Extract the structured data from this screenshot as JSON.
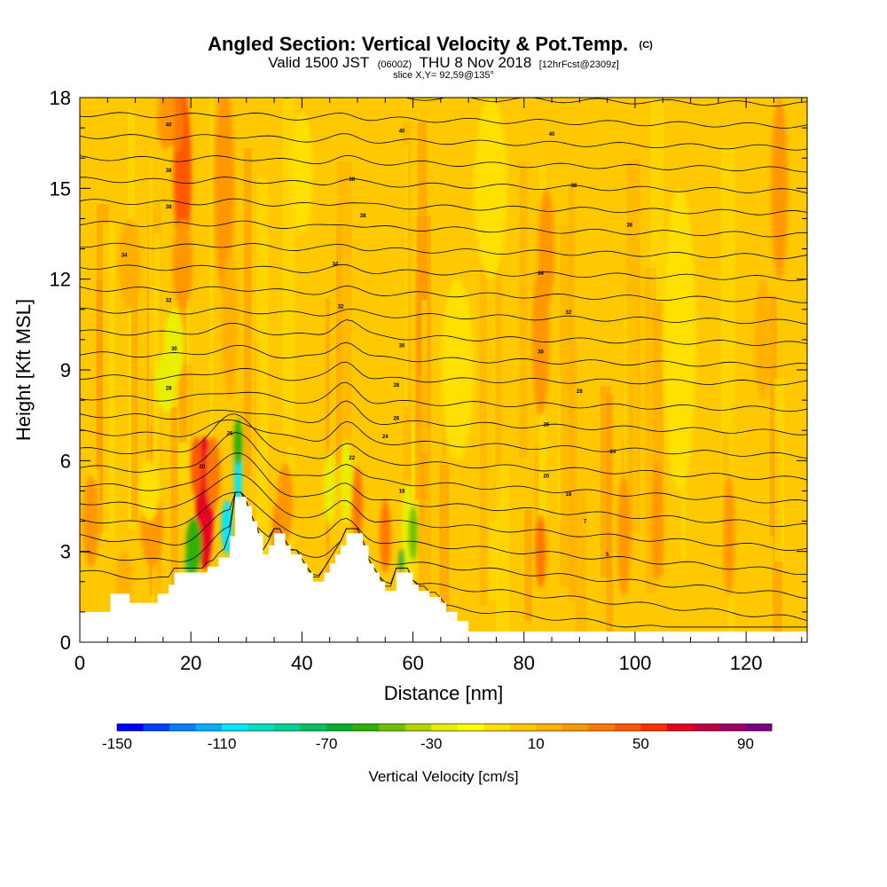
{
  "chart_data": {
    "type": "heatmap",
    "title": "Angled Section: Vertical Velocity & Pot.Temp.",
    "title_mark": "(C)",
    "subtitle": {
      "valid": "Valid 1500 JST",
      "z": "(0600Z)",
      "date": "THU 8 Nov 2018",
      "fcst": "[12hrFcst@2309z]"
    },
    "slice": "slice X,Y= 92,59@135°",
    "xlabel": "Distance [nm]",
    "ylabel": "Height [Kft MSL]",
    "xlim": [
      0,
      131
    ],
    "ylim": [
      0,
      18
    ],
    "xticks": [
      0,
      20,
      40,
      60,
      80,
      100,
      120
    ],
    "yticks": [
      0,
      3,
      6,
      9,
      12,
      15,
      18
    ],
    "colorbar": {
      "label": "Vertical Velocity [cm/s]",
      "min": -150,
      "max": 100,
      "step": 10,
      "tick_values": [
        -150,
        -110,
        -70,
        -30,
        10,
        50,
        90
      ],
      "colors": [
        "#0000ff",
        "#0040ff",
        "#0080ff",
        "#00b0ff",
        "#00e8ff",
        "#00e0c0",
        "#00d090",
        "#00c060",
        "#00b030",
        "#30b000",
        "#70c000",
        "#b0d800",
        "#e8f000",
        "#ffff00",
        "#ffe000",
        "#ffc800",
        "#ffb000",
        "#ff9800",
        "#ff7800",
        "#ff5800",
        "#ff3000",
        "#e80020",
        "#c00040",
        "#a00060",
        "#7a0080"
      ]
    },
    "background_value": 5,
    "terrain": [
      [
        0,
        1
      ],
      [
        5.5,
        1
      ],
      [
        5.5,
        1.6
      ],
      [
        9,
        1.6
      ],
      [
        9,
        1.3
      ],
      [
        14,
        1.3
      ],
      [
        14,
        1.6
      ],
      [
        16,
        1.6
      ],
      [
        16,
        1.9
      ],
      [
        17,
        1.9
      ],
      [
        17,
        2.3
      ],
      [
        23,
        2.3
      ],
      [
        23,
        2.5
      ],
      [
        25,
        2.5
      ],
      [
        25,
        2.8
      ],
      [
        27,
        2.8
      ],
      [
        27,
        3.5
      ],
      [
        28,
        3.5
      ],
      [
        28,
        4.8
      ],
      [
        30,
        4.8
      ],
      [
        30,
        4.5
      ],
      [
        31,
        4.5
      ],
      [
        31,
        4
      ],
      [
        32,
        4
      ],
      [
        32,
        3.6
      ],
      [
        33,
        3.6
      ],
      [
        33,
        2.9
      ],
      [
        34,
        2.9
      ],
      [
        34,
        3.2
      ],
      [
        35,
        3.2
      ],
      [
        35,
        3.6
      ],
      [
        37,
        3.6
      ],
      [
        37,
        3.2
      ],
      [
        38,
        3.2
      ],
      [
        38,
        2.9
      ],
      [
        40,
        2.9
      ],
      [
        40,
        2.6
      ],
      [
        41,
        2.6
      ],
      [
        41,
        2.3
      ],
      [
        42,
        2.3
      ],
      [
        42,
        2
      ],
      [
        44,
        2
      ],
      [
        44,
        2.3
      ],
      [
        45,
        2.3
      ],
      [
        45,
        2.6
      ],
      [
        46,
        2.6
      ],
      [
        46,
        2.9
      ],
      [
        47,
        2.9
      ],
      [
        47,
        3.2
      ],
      [
        48,
        3.2
      ],
      [
        48,
        3.6
      ],
      [
        51,
        3.6
      ],
      [
        51,
        3.2
      ],
      [
        52,
        3.2
      ],
      [
        52,
        2.6
      ],
      [
        53,
        2.6
      ],
      [
        53,
        2.3
      ],
      [
        54,
        2.3
      ],
      [
        54,
        2
      ],
      [
        55,
        2
      ],
      [
        55,
        1.7
      ],
      [
        57,
        1.7
      ],
      [
        57,
        2.3
      ],
      [
        60,
        2.3
      ],
      [
        60,
        1.9
      ],
      [
        61,
        1.9
      ],
      [
        61,
        1.7
      ],
      [
        63,
        1.7
      ],
      [
        63,
        1.5
      ],
      [
        65,
        1.5
      ],
      [
        65,
        1.3
      ],
      [
        66,
        1.3
      ],
      [
        66,
        1
      ],
      [
        68,
        1
      ],
      [
        68,
        0.7
      ],
      [
        70,
        0.7
      ],
      [
        70,
        0.35
      ],
      [
        131,
        0.35
      ]
    ],
    "theta_labels": [
      {
        "x": 16,
        "y": 17.1,
        "text": "40"
      },
      {
        "x": 58,
        "y": 16.9,
        "text": "40"
      },
      {
        "x": 85,
        "y": 16.8,
        "text": "40"
      },
      {
        "x": 16,
        "y": 15.6,
        "text": "38"
      },
      {
        "x": 49,
        "y": 15.3,
        "text": "38"
      },
      {
        "x": 89,
        "y": 15.1,
        "text": "38"
      },
      {
        "x": 16,
        "y": 14.4,
        "text": "38"
      },
      {
        "x": 51,
        "y": 14.1,
        "text": "38"
      },
      {
        "x": 99,
        "y": 13.8,
        "text": "38"
      },
      {
        "x": 8,
        "y": 12.8,
        "text": "34"
      },
      {
        "x": 46,
        "y": 12.5,
        "text": "34"
      },
      {
        "x": 83,
        "y": 12.2,
        "text": "34"
      },
      {
        "x": 16,
        "y": 11.3,
        "text": "32"
      },
      {
        "x": 47,
        "y": 11.1,
        "text": "32"
      },
      {
        "x": 88,
        "y": 10.9,
        "text": "32"
      },
      {
        "x": 17,
        "y": 9.7,
        "text": "30"
      },
      {
        "x": 58,
        "y": 9.8,
        "text": "30"
      },
      {
        "x": 83,
        "y": 9.6,
        "text": "30"
      },
      {
        "x": 16,
        "y": 8.4,
        "text": "28"
      },
      {
        "x": 57,
        "y": 8.5,
        "text": "28"
      },
      {
        "x": 90,
        "y": 8.3,
        "text": "28"
      },
      {
        "x": 57,
        "y": 7.4,
        "text": "26"
      },
      {
        "x": 84,
        "y": 7.2,
        "text": "26"
      },
      {
        "x": 27,
        "y": 6.9,
        "text": "26"
      },
      {
        "x": 55,
        "y": 6.8,
        "text": "24"
      },
      {
        "x": 96,
        "y": 6.3,
        "text": "24"
      },
      {
        "x": 49,
        "y": 6.1,
        "text": "22"
      },
      {
        "x": 22,
        "y": 5.8,
        "text": "20"
      },
      {
        "x": 84,
        "y": 5.5,
        "text": "20"
      },
      {
        "x": 58,
        "y": 5,
        "text": "18"
      },
      {
        "x": 88,
        "y": 4.9,
        "text": "18"
      },
      {
        "x": 91,
        "y": 4,
        "text": "7"
      },
      {
        "x": 95,
        "y": 2.9,
        "text": "5"
      }
    ]
  }
}
